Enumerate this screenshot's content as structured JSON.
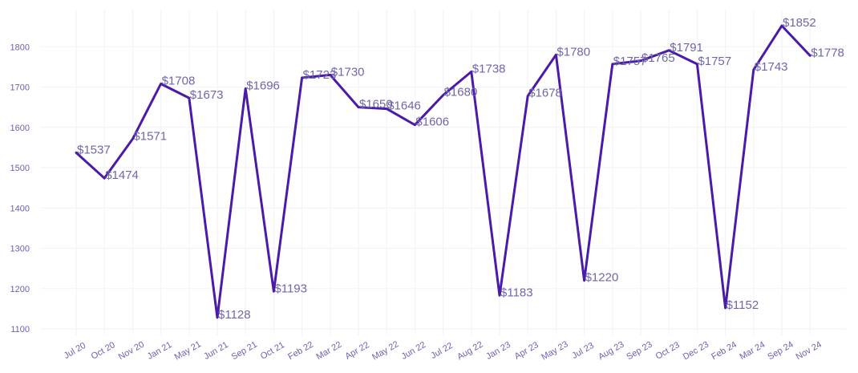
{
  "chart_data": {
    "type": "line",
    "title": "",
    "xlabel": "",
    "ylabel": "",
    "categories": [
      "Jul 20",
      "Oct 20",
      "Nov 20",
      "Jan 21",
      "May 21",
      "Jun 21",
      "Sep 21",
      "Oct 21",
      "Feb 22",
      "Mar 22",
      "Apr 22",
      "May 22",
      "Jun 22",
      "Jul 22",
      "Aug 22",
      "Jan 23",
      "Apr 23",
      "May 23",
      "Jul 23",
      "Aug 23",
      "Sep 23",
      "Oct 23",
      "Dec 23",
      "Feb 24",
      "Mar 24",
      "Sep 24",
      "Nov 24"
    ],
    "values": [
      1537,
      1474,
      1571,
      1708,
      1673,
      1128,
      1696,
      1193,
      1723,
      1730,
      1650,
      1646,
      1606,
      1680,
      1738,
      1183,
      1678,
      1780,
      1220,
      1757,
      1765,
      1791,
      1757,
      1152,
      1743,
      1852,
      1778
    ],
    "value_prefix": "$",
    "yticks": [
      1100,
      1200,
      1300,
      1400,
      1500,
      1600,
      1700,
      1800
    ],
    "ylim": [
      1080,
      1890
    ],
    "grid": true,
    "series_color": "#4a1aa8"
  }
}
